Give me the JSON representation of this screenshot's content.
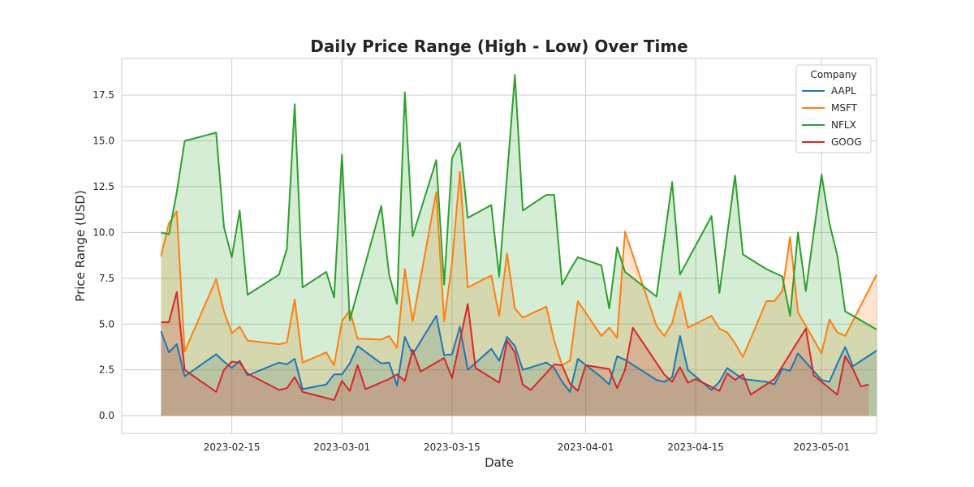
{
  "chart_data": {
    "type": "area",
    "title": "Daily Price Range (High - Low) Over Time",
    "xlabel": "Date",
    "ylabel": "Price Range (USD)",
    "xlim": [
      "2023-02-01",
      "2023-05-08"
    ],
    "ylim": [
      -0.97,
      19.5
    ],
    "xticks": [
      "2023-02-15",
      "2023-03-01",
      "2023-03-15",
      "2023-04-01",
      "2023-04-15",
      "2023-05-01"
    ],
    "yticks": [
      "0.0",
      "2.5",
      "5.0",
      "7.5",
      "10.0",
      "12.5",
      "15.0",
      "17.5"
    ],
    "grid": true,
    "legend": {
      "title": "Company",
      "position": "top-right"
    },
    "series": [
      {
        "name": "AAPL",
        "color": "#1f77b4",
        "points": [
          [
            "2023-02-06",
            4.6
          ],
          [
            "2023-02-07",
            3.45
          ],
          [
            "2023-02-08",
            3.9
          ],
          [
            "2023-02-09",
            2.15
          ],
          [
            "2023-02-13",
            3.35
          ],
          [
            "2023-02-14",
            2.95
          ],
          [
            "2023-02-15",
            2.6
          ],
          [
            "2023-02-16",
            3.0
          ],
          [
            "2023-02-17",
            2.2
          ],
          [
            "2023-02-21",
            2.9
          ],
          [
            "2023-02-22",
            2.8
          ],
          [
            "2023-02-23",
            3.1
          ],
          [
            "2023-02-24",
            1.45
          ],
          [
            "2023-02-27",
            1.7
          ],
          [
            "2023-02-28",
            2.25
          ],
          [
            "2023-03-01",
            2.25
          ],
          [
            "2023-03-02",
            2.85
          ],
          [
            "2023-03-03",
            3.8
          ],
          [
            "2023-03-06",
            2.85
          ],
          [
            "2023-03-07",
            2.9
          ],
          [
            "2023-03-08",
            1.65
          ],
          [
            "2023-03-09",
            4.3
          ],
          [
            "2023-03-10",
            3.35
          ],
          [
            "2023-03-13",
            5.45
          ],
          [
            "2023-03-14",
            3.3
          ],
          [
            "2023-03-15",
            3.35
          ],
          [
            "2023-03-16",
            4.85
          ],
          [
            "2023-03-17",
            2.5
          ],
          [
            "2023-03-20",
            3.65
          ],
          [
            "2023-03-21",
            3.0
          ],
          [
            "2023-03-22",
            4.3
          ],
          [
            "2023-03-23",
            3.8
          ],
          [
            "2023-03-24",
            2.5
          ],
          [
            "2023-03-27",
            2.9
          ],
          [
            "2023-03-28",
            2.6
          ],
          [
            "2023-03-29",
            1.85
          ],
          [
            "2023-03-30",
            1.3
          ],
          [
            "2023-03-31",
            3.1
          ],
          [
            "2023-04-03",
            2.1
          ],
          [
            "2023-04-04",
            1.7
          ],
          [
            "2023-04-05",
            3.25
          ],
          [
            "2023-04-06",
            3.05
          ],
          [
            "2023-04-10",
            1.95
          ],
          [
            "2023-04-11",
            1.85
          ],
          [
            "2023-04-12",
            2.1
          ],
          [
            "2023-04-13",
            4.35
          ],
          [
            "2023-04-14",
            2.5
          ],
          [
            "2023-04-17",
            1.4
          ],
          [
            "2023-04-18",
            1.85
          ],
          [
            "2023-04-19",
            2.6
          ],
          [
            "2023-04-20",
            2.3
          ],
          [
            "2023-04-21",
            2.0
          ],
          [
            "2023-04-24",
            1.85
          ],
          [
            "2023-04-25",
            1.7
          ],
          [
            "2023-04-26",
            2.55
          ],
          [
            "2023-04-27",
            2.45
          ],
          [
            "2023-04-28",
            3.4
          ],
          [
            "2023-05-01",
            1.95
          ],
          [
            "2023-05-02",
            1.85
          ],
          [
            "2023-05-03",
            2.85
          ],
          [
            "2023-05-04",
            3.75
          ],
          [
            "2023-05-05",
            2.7
          ],
          [
            "2023-05-08",
            3.55
          ]
        ]
      },
      {
        "name": "MSFT",
        "color": "#ff7f0e",
        "points": [
          [
            "2023-02-06",
            8.7
          ],
          [
            "2023-02-07",
            10.5
          ],
          [
            "2023-02-08",
            11.15
          ],
          [
            "2023-02-09",
            3.5
          ],
          [
            "2023-02-13",
            7.45
          ],
          [
            "2023-02-14",
            5.7
          ],
          [
            "2023-02-15",
            4.5
          ],
          [
            "2023-02-16",
            4.85
          ],
          [
            "2023-02-17",
            4.1
          ],
          [
            "2023-02-21",
            3.9
          ],
          [
            "2023-02-22",
            4.0
          ],
          [
            "2023-02-23",
            6.35
          ],
          [
            "2023-02-24",
            2.9
          ],
          [
            "2023-02-27",
            3.45
          ],
          [
            "2023-02-28",
            2.75
          ],
          [
            "2023-03-01",
            5.15
          ],
          [
            "2023-03-02",
            5.75
          ],
          [
            "2023-03-03",
            4.2
          ],
          [
            "2023-03-06",
            4.15
          ],
          [
            "2023-03-07",
            4.35
          ],
          [
            "2023-03-08",
            3.7
          ],
          [
            "2023-03-09",
            8.0
          ],
          [
            "2023-03-10",
            5.15
          ],
          [
            "2023-03-13",
            12.2
          ],
          [
            "2023-03-14",
            5.15
          ],
          [
            "2023-03-15",
            8.35
          ],
          [
            "2023-03-16",
            13.3
          ],
          [
            "2023-03-17",
            7.0
          ],
          [
            "2023-03-20",
            7.65
          ],
          [
            "2023-03-21",
            5.45
          ],
          [
            "2023-03-22",
            8.85
          ],
          [
            "2023-03-23",
            5.85
          ],
          [
            "2023-03-24",
            5.35
          ],
          [
            "2023-03-27",
            5.95
          ],
          [
            "2023-03-28",
            4.1
          ],
          [
            "2023-03-29",
            2.75
          ],
          [
            "2023-03-30",
            3.0
          ],
          [
            "2023-03-31",
            6.25
          ],
          [
            "2023-04-03",
            4.35
          ],
          [
            "2023-04-04",
            4.8
          ],
          [
            "2023-04-05",
            4.25
          ],
          [
            "2023-04-06",
            10.05
          ],
          [
            "2023-04-10",
            4.9
          ],
          [
            "2023-04-11",
            4.35
          ],
          [
            "2023-04-12",
            5.05
          ],
          [
            "2023-04-13",
            6.75
          ],
          [
            "2023-04-14",
            4.8
          ],
          [
            "2023-04-17",
            5.45
          ],
          [
            "2023-04-18",
            4.75
          ],
          [
            "2023-04-19",
            4.55
          ],
          [
            "2023-04-20",
            3.95
          ],
          [
            "2023-04-21",
            3.2
          ],
          [
            "2023-04-24",
            6.25
          ],
          [
            "2023-04-25",
            6.25
          ],
          [
            "2023-04-26",
            6.8
          ],
          [
            "2023-04-27",
            9.75
          ],
          [
            "2023-04-28",
            5.65
          ],
          [
            "2023-05-01",
            3.4
          ],
          [
            "2023-05-02",
            5.25
          ],
          [
            "2023-05-03",
            4.55
          ],
          [
            "2023-05-04",
            4.35
          ],
          [
            "2023-05-08",
            7.7
          ]
        ]
      },
      {
        "name": "NFLX",
        "color": "#2ca02c",
        "points": [
          [
            "2023-02-06",
            10.0
          ],
          [
            "2023-02-07",
            9.9
          ],
          [
            "2023-02-08",
            12.2
          ],
          [
            "2023-02-09",
            15.0
          ],
          [
            "2023-02-13",
            15.45
          ],
          [
            "2023-02-14",
            10.3
          ],
          [
            "2023-02-15",
            8.65
          ],
          [
            "2023-02-16",
            11.2
          ],
          [
            "2023-02-17",
            6.6
          ],
          [
            "2023-02-21",
            7.7
          ],
          [
            "2023-02-22",
            9.1
          ],
          [
            "2023-02-23",
            17.0
          ],
          [
            "2023-02-24",
            7.0
          ],
          [
            "2023-02-27",
            7.85
          ],
          [
            "2023-02-28",
            6.45
          ],
          [
            "2023-03-01",
            14.25
          ],
          [
            "2023-03-02",
            5.2
          ],
          [
            "2023-03-06",
            11.45
          ],
          [
            "2023-03-07",
            7.7
          ],
          [
            "2023-03-08",
            6.1
          ],
          [
            "2023-03-09",
            17.65
          ],
          [
            "2023-03-10",
            9.8
          ],
          [
            "2023-03-13",
            13.95
          ],
          [
            "2023-03-14",
            7.15
          ],
          [
            "2023-03-15",
            14.05
          ],
          [
            "2023-03-16",
            14.9
          ],
          [
            "2023-03-17",
            10.8
          ],
          [
            "2023-03-20",
            11.5
          ],
          [
            "2023-03-21",
            7.6
          ],
          [
            "2023-03-23",
            18.6
          ],
          [
            "2023-03-24",
            11.2
          ],
          [
            "2023-03-27",
            12.05
          ],
          [
            "2023-03-28",
            12.05
          ],
          [
            "2023-03-29",
            7.15
          ],
          [
            "2023-03-30",
            7.95
          ],
          [
            "2023-03-31",
            8.65
          ],
          [
            "2023-04-03",
            8.2
          ],
          [
            "2023-04-04",
            5.85
          ],
          [
            "2023-04-05",
            9.2
          ],
          [
            "2023-04-06",
            7.85
          ],
          [
            "2023-04-10",
            6.5
          ],
          [
            "2023-04-12",
            12.75
          ],
          [
            "2023-04-13",
            7.7
          ],
          [
            "2023-04-17",
            10.9
          ],
          [
            "2023-04-18",
            6.7
          ],
          [
            "2023-04-20",
            13.1
          ],
          [
            "2023-04-21",
            8.8
          ],
          [
            "2023-04-24",
            8.0
          ],
          [
            "2023-04-26",
            7.6
          ],
          [
            "2023-04-27",
            5.45
          ],
          [
            "2023-04-28",
            10.0
          ],
          [
            "2023-04-29",
            6.8
          ],
          [
            "2023-05-01",
            13.15
          ],
          [
            "2023-05-02",
            10.5
          ],
          [
            "2023-05-03",
            8.75
          ],
          [
            "2023-05-04",
            5.7
          ],
          [
            "2023-05-08",
            4.7
          ]
        ]
      },
      {
        "name": "GOOG",
        "color": "#d62728",
        "points": [
          [
            "2023-02-06",
            5.1
          ],
          [
            "2023-02-07",
            5.1
          ],
          [
            "2023-02-08",
            6.75
          ],
          [
            "2023-02-09",
            2.5
          ],
          [
            "2023-02-13",
            1.3
          ],
          [
            "2023-02-14",
            2.5
          ],
          [
            "2023-02-15",
            2.95
          ],
          [
            "2023-02-16",
            2.9
          ],
          [
            "2023-02-17",
            2.3
          ],
          [
            "2023-02-21",
            1.4
          ],
          [
            "2023-02-22",
            1.5
          ],
          [
            "2023-02-23",
            2.1
          ],
          [
            "2023-02-24",
            1.3
          ],
          [
            "2023-02-28",
            0.85
          ],
          [
            "2023-03-01",
            1.9
          ],
          [
            "2023-03-02",
            1.35
          ],
          [
            "2023-03-03",
            2.75
          ],
          [
            "2023-03-04",
            1.45
          ],
          [
            "2023-03-07",
            2.0
          ],
          [
            "2023-03-08",
            2.25
          ],
          [
            "2023-03-09",
            1.9
          ],
          [
            "2023-03-10",
            3.6
          ],
          [
            "2023-03-11",
            2.4
          ],
          [
            "2023-03-14",
            3.15
          ],
          [
            "2023-03-15",
            2.05
          ],
          [
            "2023-03-17",
            6.1
          ],
          [
            "2023-03-18",
            2.6
          ],
          [
            "2023-03-21",
            1.8
          ],
          [
            "2023-03-22",
            4.1
          ],
          [
            "2023-03-23",
            3.45
          ],
          [
            "2023-03-24",
            1.7
          ],
          [
            "2023-03-25",
            1.4
          ],
          [
            "2023-03-28",
            2.8
          ],
          [
            "2023-03-29",
            2.75
          ],
          [
            "2023-03-30",
            1.75
          ],
          [
            "2023-03-31",
            1.35
          ],
          [
            "2023-04-01",
            2.75
          ],
          [
            "2023-04-04",
            2.55
          ],
          [
            "2023-04-05",
            1.5
          ],
          [
            "2023-04-06",
            2.5
          ],
          [
            "2023-04-07",
            4.8
          ],
          [
            "2023-04-11",
            2.25
          ],
          [
            "2023-04-12",
            1.85
          ],
          [
            "2023-04-13",
            2.65
          ],
          [
            "2023-04-14",
            1.8
          ],
          [
            "2023-04-15",
            2.0
          ],
          [
            "2023-04-18",
            1.35
          ],
          [
            "2023-04-19",
            2.3
          ],
          [
            "2023-04-20",
            1.95
          ],
          [
            "2023-04-21",
            2.25
          ],
          [
            "2023-04-22",
            1.15
          ],
          [
            "2023-04-25",
            2.0
          ],
          [
            "2023-04-29",
            4.75
          ],
          [
            "2023-04-30",
            2.2
          ],
          [
            "2023-05-03",
            1.15
          ],
          [
            "2023-05-04",
            3.25
          ],
          [
            "2023-05-05",
            2.55
          ],
          [
            "2023-05-06",
            1.6
          ],
          [
            "2023-05-07",
            1.7
          ]
        ]
      }
    ]
  }
}
